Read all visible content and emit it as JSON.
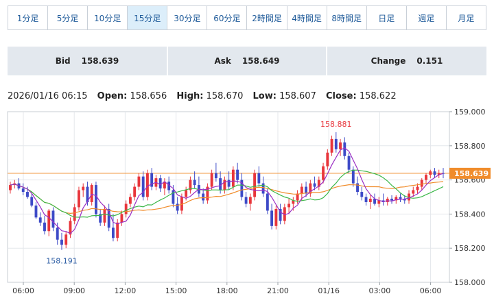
{
  "tabs": [
    {
      "label": "1分足",
      "active": false
    },
    {
      "label": "5分足",
      "active": false
    },
    {
      "label": "10分足",
      "active": false
    },
    {
      "label": "15分足",
      "active": true
    },
    {
      "label": "30分足",
      "active": false
    },
    {
      "label": "60分足",
      "active": false
    },
    {
      "label": "2時間足",
      "active": false
    },
    {
      "label": "4時間足",
      "active": false
    },
    {
      "label": "8時間足",
      "active": false
    },
    {
      "label": "日足",
      "active": false
    },
    {
      "label": "週足",
      "active": false
    },
    {
      "label": "月足",
      "active": false
    }
  ],
  "quotes": {
    "bid_label": "Bid",
    "bid_value": "158.639",
    "ask_label": "Ask",
    "ask_value": "158.649",
    "change_label": "Change",
    "change_value": "0.151"
  },
  "ohlc": {
    "datetime": "2026/01/16 06:15",
    "open_label": "Open:",
    "open_value": "158.656",
    "high_label": "High:",
    "high_value": "158.670",
    "low_label": "Low:",
    "low_value": "158.607",
    "close_label": "Close:",
    "close_value": "158.622"
  },
  "colors": {
    "up": "#e8353b",
    "down": "#3d4ac7",
    "ma_short": "#9b2fc4",
    "ma_mid": "#3db84a",
    "ma_long": "#f08c2b",
    "price_line": "#f08c2b",
    "tab_text": "#1e5a99"
  },
  "chart_data": {
    "type": "candlestick",
    "ylim": [
      158.0,
      159.0
    ],
    "y_ticks": [
      "159.000",
      "158.800",
      "158.600",
      "158.400",
      "158.200",
      "158.000"
    ],
    "x_ticks": [
      "06:00",
      "09:00",
      "12:00",
      "15:00",
      "18:00",
      "21:00",
      "01/16",
      "03:00",
      "06:00"
    ],
    "high_annotation": "158.881",
    "low_annotation": "158.191",
    "current_price_label": "158.639",
    "current_price": 158.639,
    "candles": [
      [
        158.54,
        158.59,
        158.52,
        158.57
      ],
      [
        158.57,
        158.6,
        158.55,
        158.58
      ],
      [
        158.58,
        158.61,
        158.54,
        158.55
      ],
      [
        158.55,
        158.58,
        158.51,
        158.53
      ],
      [
        158.53,
        158.56,
        158.49,
        158.5
      ],
      [
        158.5,
        158.52,
        158.44,
        158.45
      ],
      [
        158.45,
        158.47,
        158.37,
        158.38
      ],
      [
        158.38,
        158.41,
        158.33,
        158.35
      ],
      [
        158.35,
        158.39,
        158.28,
        158.3
      ],
      [
        158.3,
        158.43,
        158.27,
        158.42
      ],
      [
        158.42,
        158.44,
        158.3,
        158.32
      ],
      [
        158.32,
        158.35,
        158.22,
        158.25
      ],
      [
        158.25,
        158.29,
        158.19,
        158.22
      ],
      [
        158.22,
        158.3,
        158.2,
        158.28
      ],
      [
        158.28,
        158.38,
        158.26,
        158.36
      ],
      [
        158.36,
        158.46,
        158.34,
        158.44
      ],
      [
        158.44,
        158.56,
        158.42,
        158.54
      ],
      [
        158.54,
        158.58,
        158.5,
        158.56
      ],
      [
        158.56,
        158.59,
        158.45,
        158.47
      ],
      [
        158.47,
        158.58,
        158.45,
        158.57
      ],
      [
        158.57,
        158.59,
        158.38,
        158.4
      ],
      [
        158.4,
        158.43,
        158.33,
        158.35
      ],
      [
        158.35,
        158.45,
        158.33,
        158.43
      ],
      [
        158.43,
        158.46,
        158.3,
        158.32
      ],
      [
        158.32,
        158.4,
        158.24,
        158.26
      ],
      [
        158.26,
        158.37,
        158.24,
        158.35
      ],
      [
        158.35,
        158.42,
        158.33,
        158.4
      ],
      [
        158.4,
        158.48,
        158.38,
        158.46
      ],
      [
        158.46,
        158.52,
        158.44,
        158.5
      ],
      [
        158.5,
        158.58,
        158.48,
        158.56
      ],
      [
        158.56,
        158.64,
        158.54,
        158.62
      ],
      [
        158.62,
        158.65,
        158.48,
        158.5
      ],
      [
        158.5,
        158.66,
        158.48,
        158.64
      ],
      [
        158.64,
        158.67,
        158.54,
        158.56
      ],
      [
        158.56,
        158.63,
        158.54,
        158.61
      ],
      [
        158.61,
        158.63,
        158.53,
        158.55
      ],
      [
        158.55,
        158.61,
        158.51,
        158.59
      ],
      [
        158.59,
        158.62,
        158.52,
        158.54
      ],
      [
        158.54,
        158.57,
        158.44,
        158.46
      ],
      [
        158.46,
        158.5,
        158.4,
        158.42
      ],
      [
        158.42,
        158.52,
        158.4,
        158.5
      ],
      [
        158.5,
        158.56,
        158.48,
        158.54
      ],
      [
        158.54,
        158.62,
        158.52,
        158.6
      ],
      [
        158.6,
        158.65,
        158.55,
        158.57
      ],
      [
        158.57,
        158.62,
        158.5,
        158.52
      ],
      [
        158.52,
        158.55,
        158.46,
        158.48
      ],
      [
        158.48,
        158.58,
        158.46,
        158.56
      ],
      [
        158.56,
        158.66,
        158.54,
        158.64
      ],
      [
        158.64,
        158.7,
        158.59,
        158.61
      ],
      [
        158.61,
        158.65,
        158.52,
        158.54
      ],
      [
        158.54,
        158.62,
        158.52,
        158.6
      ],
      [
        158.6,
        158.65,
        158.54,
        158.56
      ],
      [
        158.56,
        158.68,
        158.54,
        158.66
      ],
      [
        158.66,
        158.7,
        158.58,
        158.6
      ],
      [
        158.6,
        158.64,
        158.48,
        158.5
      ],
      [
        158.5,
        158.53,
        158.44,
        158.46
      ],
      [
        158.46,
        158.52,
        158.42,
        158.5
      ],
      [
        158.5,
        158.66,
        158.48,
        158.64
      ],
      [
        158.64,
        158.68,
        158.56,
        158.58
      ],
      [
        158.58,
        158.62,
        158.5,
        158.52
      ],
      [
        158.52,
        158.55,
        158.4,
        158.42
      ],
      [
        158.42,
        158.46,
        158.31,
        158.33
      ],
      [
        158.33,
        158.45,
        158.31,
        158.43
      ],
      [
        158.43,
        158.46,
        158.34,
        158.36
      ],
      [
        158.36,
        158.46,
        158.34,
        158.44
      ],
      [
        158.44,
        158.49,
        158.4,
        158.46
      ],
      [
        158.46,
        158.5,
        158.42,
        158.48
      ],
      [
        158.48,
        158.54,
        158.46,
        158.52
      ],
      [
        158.52,
        158.58,
        158.48,
        158.56
      ],
      [
        158.56,
        158.59,
        158.5,
        158.52
      ],
      [
        158.52,
        158.6,
        158.5,
        158.58
      ],
      [
        158.58,
        158.62,
        158.54,
        158.56
      ],
      [
        158.56,
        158.62,
        158.54,
        158.6
      ],
      [
        158.6,
        158.7,
        158.58,
        158.68
      ],
      [
        158.68,
        158.78,
        158.66,
        158.76
      ],
      [
        158.76,
        158.86,
        158.74,
        158.84
      ],
      [
        158.84,
        158.88,
        158.76,
        158.78
      ],
      [
        158.78,
        158.84,
        158.74,
        158.82
      ],
      [
        158.82,
        158.85,
        158.72,
        158.74
      ],
      [
        158.74,
        158.76,
        158.64,
        158.66
      ],
      [
        158.66,
        158.68,
        158.56,
        158.58
      ],
      [
        158.58,
        158.62,
        158.51,
        158.53
      ],
      [
        158.53,
        158.56,
        158.48,
        158.5
      ],
      [
        158.5,
        158.52,
        158.45,
        158.47
      ],
      [
        158.47,
        158.51,
        158.43,
        158.49
      ],
      [
        158.49,
        158.52,
        158.45,
        158.46
      ],
      [
        158.46,
        158.5,
        158.44,
        158.48
      ],
      [
        158.48,
        158.52,
        158.45,
        158.47
      ],
      [
        158.47,
        158.5,
        158.45,
        158.49
      ],
      [
        158.49,
        158.51,
        158.46,
        158.48
      ],
      [
        158.48,
        158.51,
        158.46,
        158.5
      ],
      [
        158.5,
        158.52,
        158.47,
        158.49
      ],
      [
        158.49,
        158.51,
        158.46,
        158.48
      ],
      [
        158.48,
        158.54,
        158.46,
        158.52
      ],
      [
        158.52,
        158.56,
        158.5,
        158.54
      ],
      [
        158.54,
        158.58,
        158.52,
        158.56
      ],
      [
        158.56,
        158.61,
        158.54,
        158.6
      ],
      [
        158.6,
        158.64,
        158.58,
        158.63
      ],
      [
        158.63,
        158.66,
        158.61,
        158.65
      ],
      [
        158.65,
        158.67,
        158.61,
        158.63
      ],
      [
        158.63,
        158.66,
        158.61,
        158.64
      ],
      [
        158.64,
        158.67,
        158.61,
        158.639
      ]
    ]
  }
}
